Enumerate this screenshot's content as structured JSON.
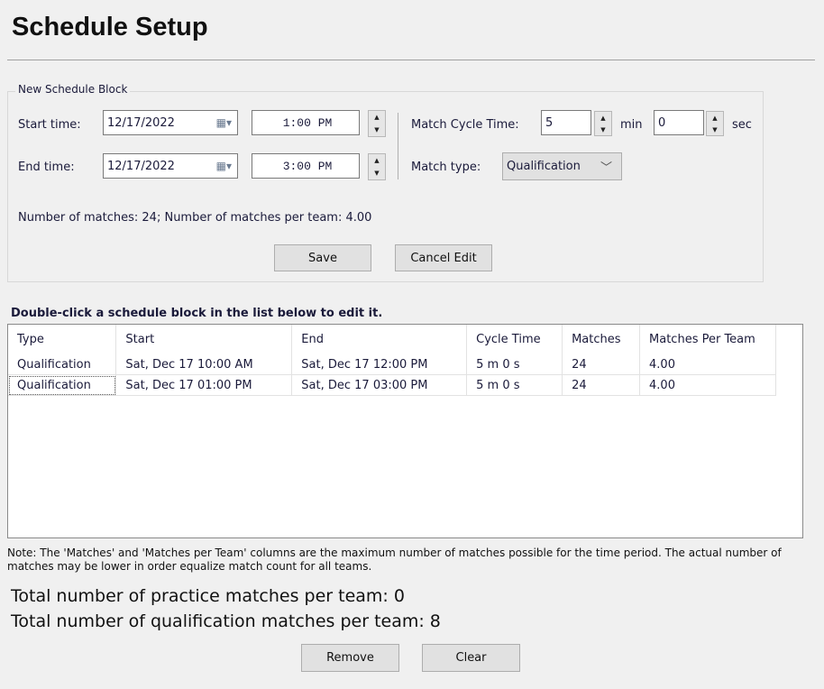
{
  "title": "Schedule Setup",
  "block": {
    "legend": "New Schedule Block",
    "start_label": "Start time:",
    "start_date": "12/17/2022",
    "start_time": "1:00 PM",
    "end_label": "End time:",
    "end_date": "12/17/2022",
    "end_time": "3:00 PM",
    "cycle_label": "Match Cycle Time:",
    "cycle_min": "5",
    "min_label": "min",
    "cycle_sec": "0",
    "sec_label": "sec",
    "type_label": "Match type:",
    "type_value": "Qualification",
    "summary": "Number of matches: 24; Number of matches per team: 4.00",
    "save": "Save",
    "cancel": "Cancel Edit"
  },
  "instructions": "Double-click a schedule block in the list below to edit it.",
  "table": {
    "headers": [
      "Type",
      "Start",
      "End",
      "Cycle Time",
      "Matches",
      "Matches Per Team"
    ],
    "rows": [
      [
        "Qualification",
        "Sat, Dec 17 10:00 AM",
        "Sat, Dec 17 12:00 PM",
        "5 m 0 s",
        "24",
        "4.00"
      ],
      [
        "Qualification",
        "Sat, Dec 17 01:00 PM",
        "Sat, Dec 17 03:00 PM",
        "5 m 0 s",
        "24",
        "4.00"
      ]
    ]
  },
  "note": "Note: The 'Matches' and 'Matches per Team' columns are the maximum number of matches possible for the time period.  The actual number of matches may be lower in order equalize match count for all teams.",
  "total_practice": "Total number of practice matches per team: 0",
  "total_qual": "Total number of qualification matches per team: 8",
  "remove": "Remove",
  "clear": "Clear"
}
